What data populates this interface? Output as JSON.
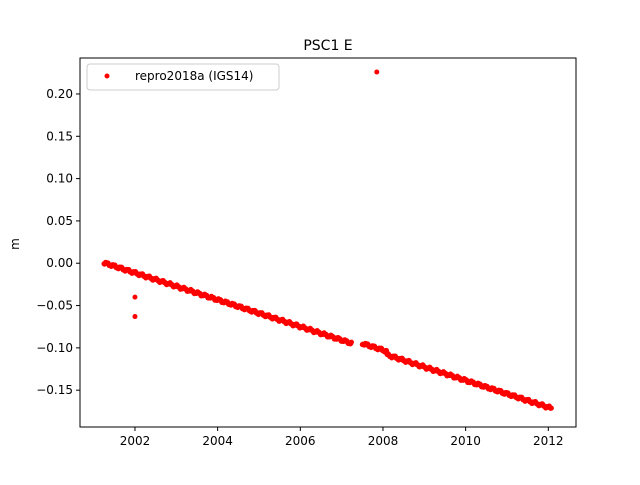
{
  "chart_data": {
    "type": "scatter",
    "title": "PSC1 E",
    "xlabel": "",
    "ylabel": "m",
    "xlim": [
      2000.67,
      2012.67
    ],
    "ylim": [
      -0.1935,
      0.2425
    ],
    "xticks": [
      2002,
      2004,
      2006,
      2008,
      2010,
      2012
    ],
    "xtick_labels": [
      "2002",
      "2004",
      "2006",
      "2008",
      "2010",
      "2012"
    ],
    "yticks": [
      -0.15,
      -0.1,
      -0.05,
      0.0,
      0.05,
      0.1,
      0.15,
      0.2
    ],
    "ytick_labels": [
      "−0.15",
      "−0.10",
      "−0.05",
      "0.00",
      "0.05",
      "0.10",
      "0.15",
      "0.20"
    ],
    "grid": false,
    "legend": {
      "position": "top-left"
    },
    "series": [
      {
        "name": "repro2018a (IGS14)",
        "color": "#ff0000",
        "marker": "circle",
        "trend": {
          "x": [
            2001.25,
            2012.08
          ],
          "y": [
            0.0005,
            -0.1715
          ]
        },
        "trend_step": 0.0125,
        "gaps": [
          [
            2007.25,
            2007.5
          ]
        ],
        "offsets": [
          {
            "x": [
              2007.5,
              2008.1
            ],
            "dy": 0.004
          }
        ],
        "points": [
          {
            "x": 2002.0,
            "y": -0.04
          },
          {
            "x": 2002.0,
            "y": -0.063
          },
          {
            "x": 2007.85,
            "y": 0.226
          }
        ]
      }
    ]
  }
}
